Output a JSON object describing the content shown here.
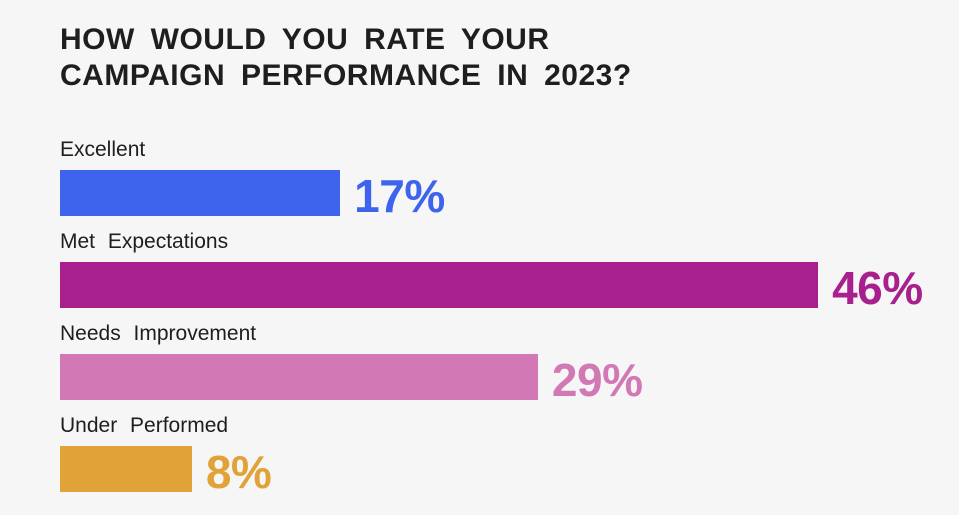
{
  "chart_data": {
    "type": "bar",
    "orientation": "horizontal",
    "title": "HOW WOULD YOU RATE YOUR CAMPAIGN PERFORMANCE IN 2023?",
    "title_lines": [
      "HOW WOULD YOU RATE YOUR",
      "CAMPAIGN PERFORMANCE IN 2023?"
    ],
    "categories": [
      "Excellent",
      "Met Expectations",
      "Needs Improvement",
      "Under Performed"
    ],
    "values": [
      17,
      46,
      29,
      8
    ],
    "value_labels": [
      "17%",
      "46%",
      "29%",
      "8%"
    ],
    "bar_colors": [
      "#3E63ED",
      "#A7208D",
      "#D178B5",
      "#E1A338"
    ],
    "xlim": [
      0,
      50
    ],
    "grid": false,
    "legend": "none",
    "background": "#F6F6F6",
    "text_color": "#1E1E1E"
  }
}
